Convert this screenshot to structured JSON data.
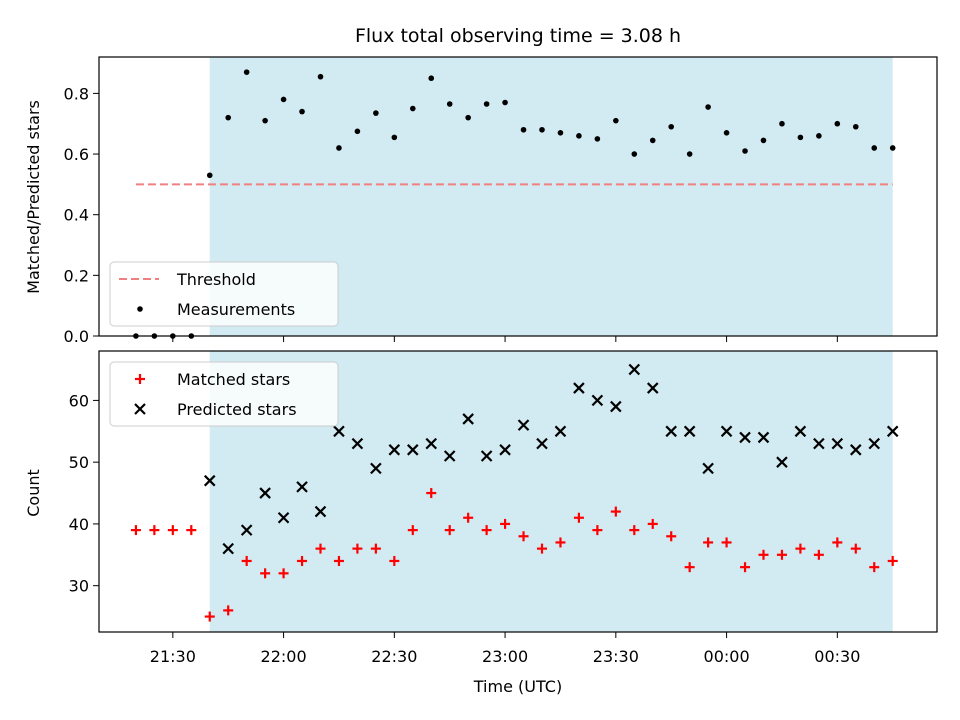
{
  "chart_data": [
    {
      "type": "scatter",
      "title": "Flux total observing time = 3.08 h",
      "xlabel": "",
      "ylabel": "Matched/Predicted stars",
      "ylim": [
        0,
        0.92
      ],
      "yticks": [
        "0.0",
        "0.2",
        "0.4",
        "0.6",
        "0.8"
      ],
      "xlim": [
        "21:10",
        "00:57"
      ],
      "xticks": [
        "21:30",
        "22:00",
        "22:30",
        "23:00",
        "23:30",
        "00:00",
        "00:30"
      ],
      "shaded_interval": [
        "21:40",
        "00:45"
      ],
      "shaded_color": "#add8e6",
      "threshold": {
        "name": "Threshold",
        "value": 0.5,
        "x_range": [
          "21:20",
          "00:45"
        ],
        "color": "#f08080",
        "style": "dashed"
      },
      "legend": {
        "position": "lower-left",
        "entries": [
          "Threshold",
          "Measurements"
        ]
      },
      "series": [
        {
          "name": "Measurements",
          "marker": "dot",
          "color": "#000000",
          "x": [
            "21:20",
            "21:25",
            "21:30",
            "21:35",
            "21:40",
            "21:45",
            "21:50",
            "21:55",
            "22:00",
            "22:05",
            "22:10",
            "22:15",
            "22:20",
            "22:25",
            "22:30",
            "22:35",
            "22:40",
            "22:45",
            "22:50",
            "22:55",
            "23:00",
            "23:05",
            "23:10",
            "23:15",
            "23:20",
            "23:25",
            "23:30",
            "23:35",
            "23:40",
            "23:45",
            "23:50",
            "23:55",
            "00:00",
            "00:05",
            "00:10",
            "00:15",
            "00:20",
            "00:25",
            "00:30",
            "00:35",
            "00:40",
            "00:45"
          ],
          "y": [
            0.0,
            0.0,
            0.0,
            0.0,
            0.53,
            0.72,
            0.87,
            0.71,
            0.78,
            0.74,
            0.855,
            0.62,
            0.675,
            0.735,
            0.655,
            0.75,
            0.85,
            0.765,
            0.72,
            0.765,
            0.77,
            0.68,
            0.68,
            0.67,
            0.66,
            0.65,
            0.71,
            0.6,
            0.645,
            0.69,
            0.6,
            0.755,
            0.67,
            0.61,
            0.645,
            0.7,
            0.655,
            0.66,
            0.7,
            0.69,
            0.62,
            0.62
          ]
        }
      ]
    },
    {
      "type": "scatter",
      "title": "",
      "xlabel": "Time (UTC)",
      "ylabel": "Count",
      "ylim": [
        22.5,
        68
      ],
      "yticks": [
        "30",
        "40",
        "50",
        "60"
      ],
      "xlim": [
        "21:10",
        "00:57"
      ],
      "xticks": [
        "21:30",
        "22:00",
        "22:30",
        "23:00",
        "23:30",
        "00:00",
        "00:30"
      ],
      "shaded_interval": [
        "21:40",
        "00:45"
      ],
      "shaded_color": "#add8e6",
      "legend": {
        "position": "top-left",
        "entries": [
          "Matched stars",
          "Predicted stars"
        ]
      },
      "series": [
        {
          "name": "Matched stars",
          "marker": "plus",
          "color": "#ff0000",
          "x": [
            "21:20",
            "21:25",
            "21:30",
            "21:35",
            "21:40",
            "21:45",
            "21:50",
            "21:55",
            "22:00",
            "22:05",
            "22:10",
            "22:15",
            "22:20",
            "22:25",
            "22:30",
            "22:35",
            "22:40",
            "22:45",
            "22:50",
            "22:55",
            "23:00",
            "23:05",
            "23:10",
            "23:15",
            "23:20",
            "23:25",
            "23:30",
            "23:35",
            "23:40",
            "23:45",
            "23:50",
            "23:55",
            "00:00",
            "00:05",
            "00:10",
            "00:15",
            "00:20",
            "00:25",
            "00:30",
            "00:35",
            "00:40",
            "00:45"
          ],
          "y": [
            39,
            39,
            39,
            39,
            25,
            26,
            34,
            32,
            32,
            34,
            36,
            34,
            36,
            36,
            34,
            39,
            45,
            39,
            41,
            39,
            40,
            38,
            36,
            37,
            41,
            39,
            42,
            39,
            40,
            38,
            33,
            37,
            37,
            33,
            35,
            35,
            36,
            35,
            37,
            36,
            33,
            34
          ]
        },
        {
          "name": "Predicted stars",
          "marker": "x",
          "color": "#000000",
          "x": [
            "21:40",
            "21:45",
            "21:50",
            "21:55",
            "22:00",
            "22:05",
            "22:10",
            "22:15",
            "22:20",
            "22:25",
            "22:30",
            "22:35",
            "22:40",
            "22:45",
            "22:50",
            "22:55",
            "23:00",
            "23:05",
            "23:10",
            "23:15",
            "23:20",
            "23:25",
            "23:30",
            "23:35",
            "23:40",
            "23:45",
            "23:50",
            "23:55",
            "00:00",
            "00:05",
            "00:10",
            "00:15",
            "00:20",
            "00:25",
            "00:30",
            "00:35",
            "00:40",
            "00:45"
          ],
          "y": [
            47,
            36,
            39,
            45,
            41,
            46,
            42,
            55,
            53,
            49,
            52,
            52,
            53,
            51,
            57,
            51,
            52,
            56,
            53,
            55,
            62,
            60,
            59,
            65,
            62,
            55,
            55,
            49,
            55,
            54,
            54,
            50,
            55,
            53,
            53,
            52,
            53,
            55
          ]
        }
      ]
    }
  ]
}
